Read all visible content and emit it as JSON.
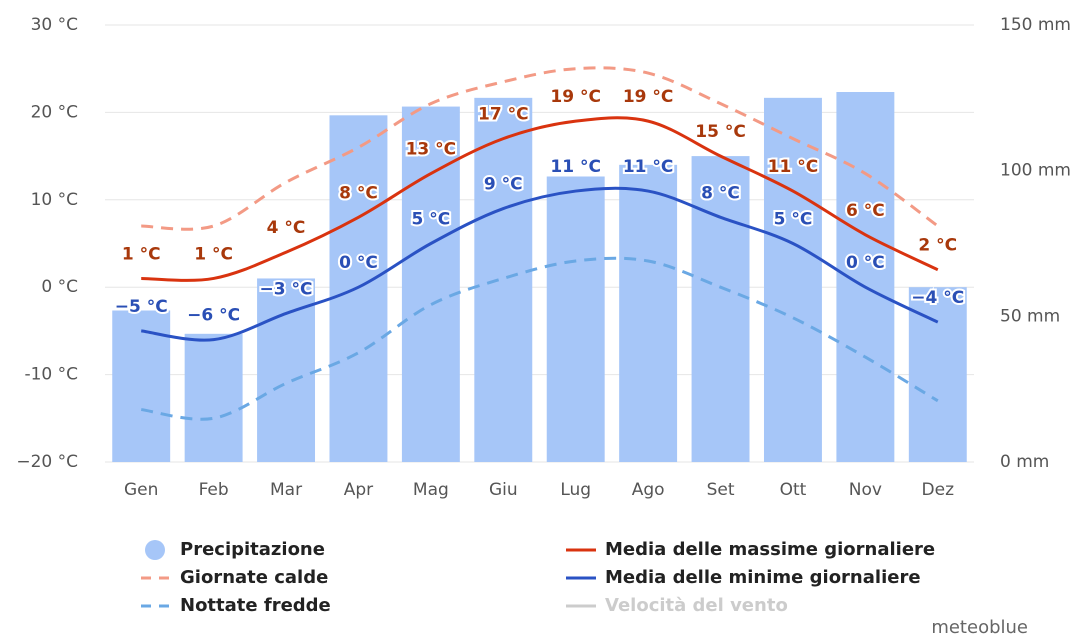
{
  "chart_data": {
    "type": "combo",
    "categories": [
      "Gen",
      "Feb",
      "Mar",
      "Apr",
      "Mag",
      "Giu",
      "Lug",
      "Ago",
      "Set",
      "Ott",
      "Nov",
      "Dez"
    ],
    "ylim": [
      -20,
      30
    ],
    "yticks": [
      {
        "value": -20,
        "label": "−20 °C"
      },
      {
        "value": -10,
        "label": "-10 °C"
      },
      {
        "value": 0,
        "label": "0 °C"
      },
      {
        "value": 10,
        "label": "10 °C"
      },
      {
        "value": 20,
        "label": "20 °C"
      },
      {
        "value": 30,
        "label": "30 °C"
      }
    ],
    "y2lim": [
      0,
      150
    ],
    "y2ticks": [
      {
        "value": 0,
        "label": "0 mm"
      },
      {
        "value": 50,
        "label": "50 mm"
      },
      {
        "value": 100,
        "label": "100 mm"
      },
      {
        "value": 150,
        "label": "150 mm"
      }
    ],
    "grid": true,
    "series": [
      {
        "name": "Precipitazione",
        "type": "bar",
        "axis": "y2",
        "color": "#a6c6f8",
        "values": [
          52,
          44,
          63,
          119,
          122,
          125,
          98,
          102,
          105,
          125,
          127,
          60
        ]
      },
      {
        "name": "Media delle massime giornaliere",
        "type": "line",
        "color": "#d9330f",
        "dash": false,
        "label_color": "#a8380b",
        "values": [
          1,
          1,
          4,
          8,
          13,
          17,
          19,
          19,
          15,
          11,
          6,
          2
        ],
        "value_labels": [
          "1 °C",
          "1 °C",
          "4 °C",
          "8 °C",
          "13 °C",
          "17 °C",
          "19 °C",
          "19 °C",
          "15 °C",
          "11 °C",
          "6 °C",
          "2 °C"
        ]
      },
      {
        "name": "Giornate calde",
        "type": "line",
        "color": "#f39a85",
        "dash": true,
        "values": [
          7,
          7,
          12,
          16,
          21,
          23.5,
          25,
          24.5,
          21,
          17,
          13,
          7
        ]
      },
      {
        "name": "Media delle minime giornaliere",
        "type": "line",
        "color": "#2a52c4",
        "dash": false,
        "label_color": "#2a4fb5",
        "values": [
          -5,
          -6,
          -3,
          0,
          5,
          9,
          11,
          11,
          8,
          5,
          0,
          -4
        ],
        "value_labels": [
          "−5 °C",
          "−6 °C",
          "−3 °C",
          "0 °C",
          "5 °C",
          "9 °C",
          "11 °C",
          "11 °C",
          "8 °C",
          "5 °C",
          "0 °C",
          "−4 °C"
        ]
      },
      {
        "name": "Nottate fredde",
        "type": "line",
        "color": "#6aa8e4",
        "dash": true,
        "values": [
          -14,
          -15,
          -11,
          -7.5,
          -2,
          1,
          3,
          3,
          0,
          -3.5,
          -8,
          -13
        ]
      },
      {
        "name": "Velocità del vento",
        "type": "line",
        "color": "#cccccc",
        "dash": false,
        "values": [
          null,
          null,
          null,
          null,
          null,
          null,
          null,
          null,
          null,
          null,
          null,
          null
        ]
      }
    ],
    "credit": "meteoblue"
  }
}
